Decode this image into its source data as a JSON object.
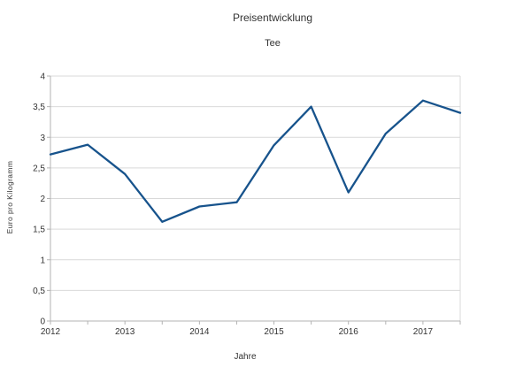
{
  "page": {
    "background": "#ffffff"
  },
  "chart_data": {
    "type": "line",
    "title": "Preisentwicklung",
    "subtitle": "Tee",
    "xlabel": "Jahre",
    "ylabel": "Euro pro Kilogramm",
    "x": [
      2012,
      2012.5,
      2013,
      2013.5,
      2014,
      2014.5,
      2015,
      2015.5,
      2016,
      2016.5,
      2017,
      2017.5
    ],
    "series": [
      {
        "name": "Tee",
        "color": "#17538c",
        "values": [
          2.72,
          2.88,
          2.4,
          1.62,
          1.87,
          1.94,
          2.87,
          3.5,
          2.1,
          3.06,
          3.6,
          3.4
        ]
      }
    ],
    "xlim": [
      2012,
      2017.5
    ],
    "ylim": [
      0,
      4
    ],
    "x_ticks": {
      "values": [
        2012,
        2013,
        2014,
        2015,
        2016,
        2017
      ],
      "labels": [
        "2012",
        "2013",
        "2014",
        "2015",
        "2016",
        "2017"
      ],
      "minor_step": 0.5
    },
    "y_ticks": {
      "values": [
        0,
        0.5,
        1,
        1.5,
        2,
        2.5,
        3,
        3.5,
        4
      ],
      "labels": [
        "0",
        "0,5",
        "1",
        "1,5",
        "2",
        "2,5",
        "3",
        "3,5",
        "4"
      ]
    },
    "grid": "horizontal",
    "legend": "none",
    "colors": {
      "grid": "#d9d9d9",
      "axis": "#b3b3b3",
      "text": "#333333",
      "background": "#ffffff"
    }
  }
}
